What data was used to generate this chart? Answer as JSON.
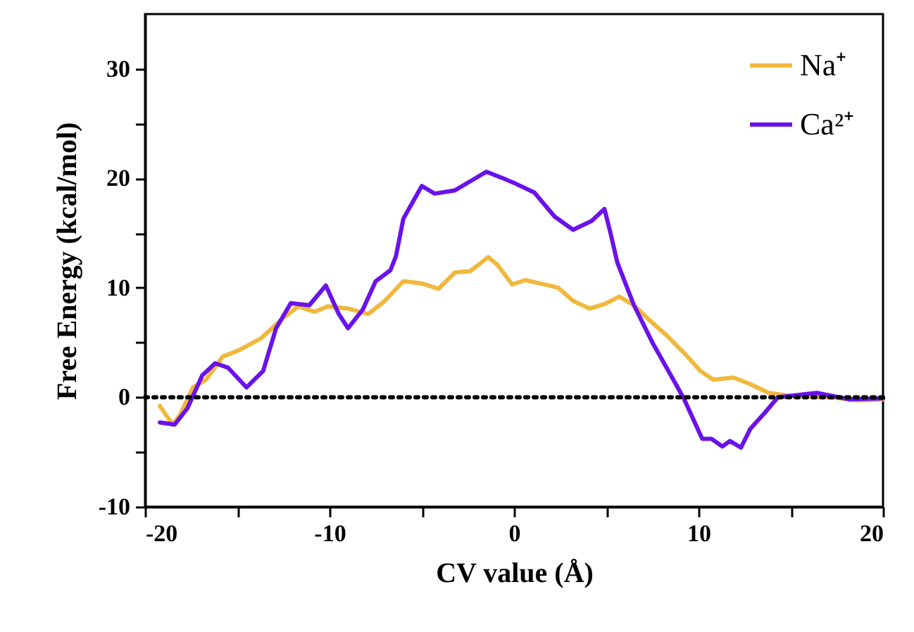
{
  "chart_data": {
    "type": "line",
    "xlabel": "CV value (Å)",
    "ylabel": "Free Energy (kcal/mol)",
    "xlim": [
      -20,
      20
    ],
    "xticks": [
      -20,
      {
        "value": -15,
        "label": null
      },
      -10,
      {
        "value": -5,
        "label": null
      },
      0,
      {
        "value": 5,
        "label": null
      },
      10,
      {
        "value": 15,
        "label": null
      },
      20
    ],
    "ylim": [
      -10,
      35
    ],
    "yticks": [
      -10,
      {
        "value": -5,
        "label": null
      },
      0,
      {
        "value": 5,
        "label": null
      },
      10,
      {
        "value": 15,
        "label": null
      },
      20,
      {
        "value": 25,
        "label": null
      },
      30
    ],
    "grid": false,
    "legend": "top right",
    "line_style": "solid",
    "marker": "none",
    "ref_lines": [
      {
        "axis": "y",
        "value": 0,
        "color": "#000000",
        "line_style": "dotted"
      }
    ],
    "series": [
      {
        "name": "Na⁺",
        "color": "#f0b83c",
        "x": [
          -19.2,
          -18.5,
          -18.1,
          -17.4,
          -16.7,
          -15.8,
          -14.9,
          -13.7,
          -12.6,
          -11.7,
          -10.8,
          -10.1,
          -9.0,
          -7.9,
          -7.0,
          -6.0,
          -5.0,
          -4.1,
          -3.2,
          -2.4,
          -1.4,
          -0.9,
          -0.1,
          0.6,
          1.4,
          2.4,
          3.2,
          4.1,
          4.9,
          5.7,
          6.5,
          7.3,
          8.3,
          9.3,
          10.1,
          10.8,
          11.9,
          12.8,
          13.8,
          15.1,
          17.2,
          18.7,
          20
        ],
        "values": [
          -0.8,
          -2.5,
          -1.6,
          0.9,
          1.6,
          3.7,
          4.3,
          5.4,
          7.1,
          8.3,
          7.8,
          8.3,
          8.1,
          7.6,
          8.8,
          10.6,
          10.4,
          9.9,
          11.4,
          11.5,
          12.8,
          12.1,
          10.3,
          10.7,
          10.4,
          10.0,
          8.8,
          8.1,
          8.5,
          9.2,
          8.4,
          7.1,
          5.6,
          3.9,
          2.4,
          1.6,
          1.8,
          1.2,
          0.4,
          0.1,
          0,
          -0.3,
          -0.2
        ]
      },
      {
        "name": "Ca²⁺",
        "color": "#6a12ea",
        "x": [
          -19.2,
          -18.4,
          -17.7,
          -16.9,
          -16.2,
          -15.5,
          -14.5,
          -13.6,
          -12.9,
          -12.1,
          -11.1,
          -10.2,
          -9.5,
          -9.0,
          -8.2,
          -7.5,
          -6.7,
          -6.4,
          -6.0,
          -5.5,
          -5.0,
          -4.3,
          -3.2,
          -2.4,
          -1.5,
          -0.6,
          0.1,
          1.1,
          2.2,
          3.2,
          4.2,
          4.9,
          5.2,
          5.6,
          6.5,
          7.5,
          8.5,
          9.2,
          10.2,
          10.7,
          11.3,
          11.7,
          12.3,
          12.8,
          13.6,
          14.3,
          16.4,
          18.2,
          20
        ],
        "values": [
          -2.3,
          -2.5,
          -1.0,
          2.0,
          3.1,
          2.7,
          0.9,
          2.4,
          6.3,
          8.6,
          8.4,
          10.2,
          7.6,
          6.3,
          8.0,
          10.6,
          11.6,
          12.9,
          16.3,
          17.8,
          19.3,
          18.6,
          18.9,
          19.7,
          20.6,
          20.0,
          19.5,
          18.7,
          16.5,
          15.3,
          16.1,
          17.2,
          15.2,
          12.3,
          8.4,
          5.0,
          2.0,
          -0.1,
          -3.8,
          -3.8,
          -4.5,
          -4.0,
          -4.6,
          -2.9,
          -1.4,
          0,
          0.4,
          -0.2,
          -0.1
        ]
      }
    ]
  }
}
